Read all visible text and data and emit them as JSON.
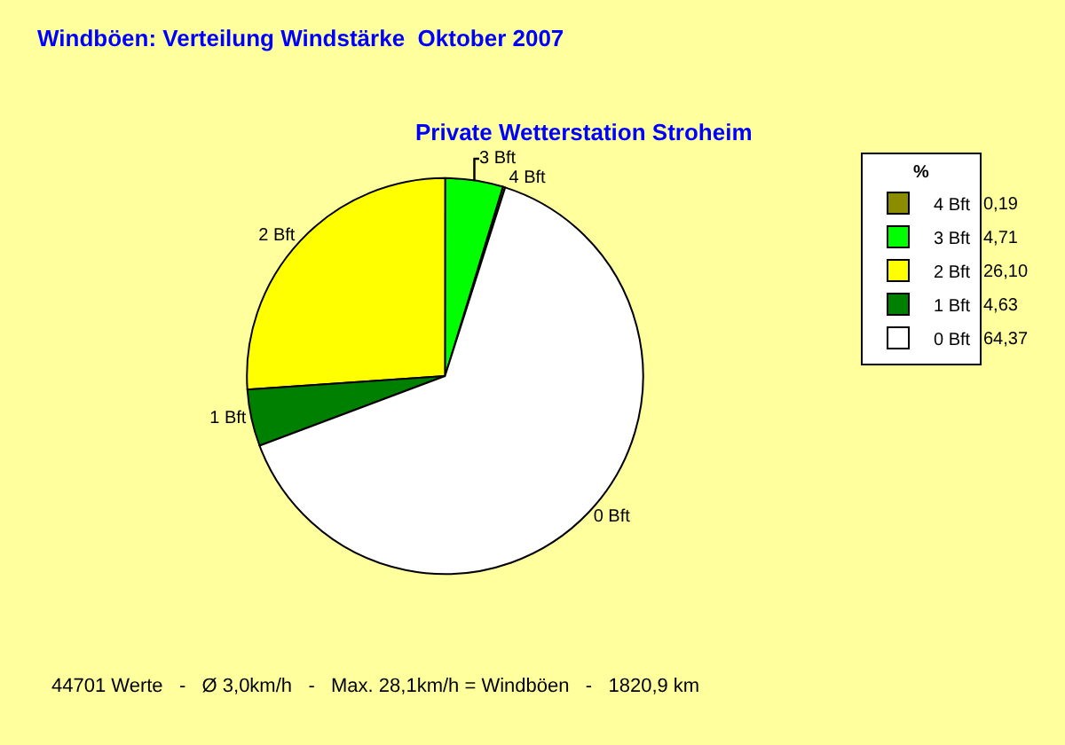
{
  "chart_data": {
    "type": "pie",
    "title": "Windböen: Verteilung Windstärke  Oktober 2007",
    "subtitle": "Private Wetterstation Stroheim",
    "legend_title": "%",
    "legend": "top right",
    "categories": [
      "4 Bft",
      "3 Bft",
      "2 Bft",
      "1 Bft",
      "0 Bft"
    ],
    "values": [
      0.19,
      4.71,
      26.1,
      4.63,
      64.37
    ],
    "value_labels": [
      "0,19",
      "4,71",
      "26,10",
      "4,63",
      "64,37"
    ],
    "colors": [
      "#8c8c00",
      "#00ff00",
      "#ffff00",
      "#008000",
      "#ffffff"
    ],
    "annotations": [
      "44701 Werte   -   Ø 3,0km/h   -   Max. 28,1km/h = Windböen   -   1820,9 km"
    ]
  }
}
